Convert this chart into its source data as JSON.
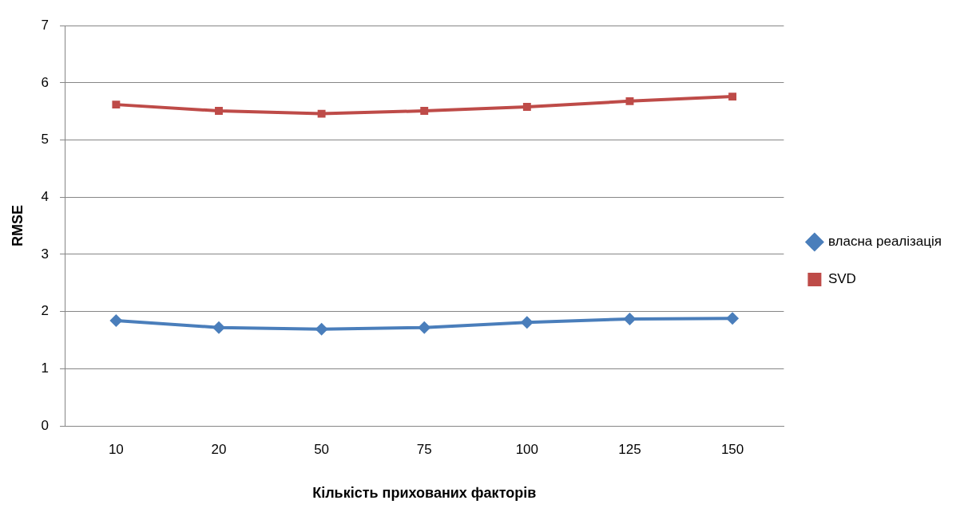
{
  "chart_data": {
    "type": "line",
    "xlabel": "Кількість прихованих факторів",
    "ylabel": "RMSE",
    "categories": [
      "10",
      "20",
      "50",
      "75",
      "100",
      "125",
      "150"
    ],
    "series": [
      {
        "name": "власна реалізація",
        "color": "#4a7ebb",
        "marker": "diamond",
        "values": [
          1.84,
          1.72,
          1.69,
          1.72,
          1.81,
          1.87,
          1.88
        ]
      },
      {
        "name": "SVD",
        "color": "#be4b48",
        "marker": "square",
        "values": [
          5.62,
          5.51,
          5.46,
          5.51,
          5.58,
          5.68,
          5.76
        ]
      }
    ],
    "ylim": [
      0,
      7
    ],
    "yticks": [
      0,
      1,
      2,
      3,
      4,
      5,
      6,
      7
    ],
    "grid": "y",
    "legend": "right",
    "line_style": "solid"
  }
}
